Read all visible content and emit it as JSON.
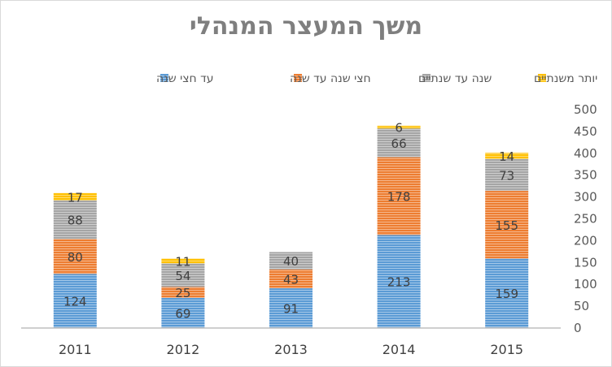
{
  "chart_data": {
    "type": "bar",
    "stacked": true,
    "title": "משך המעצר המנהלי",
    "categories": [
      "2011",
      "2012",
      "2013",
      "2014",
      "2015"
    ],
    "series": [
      {
        "name": "עד חצי שנה",
        "color": "#5b9bd5",
        "values": [
          124,
          69,
          91,
          213,
          159
        ]
      },
      {
        "name": "חצי שנה עד שנה",
        "color": "#ed7d31",
        "values": [
          80,
          25,
          43,
          178,
          155
        ]
      },
      {
        "name": "שנה עד שנתיים",
        "color": "#a5a5a5",
        "values": [
          88,
          54,
          40,
          66,
          73
        ]
      },
      {
        "name": "יותר משנתיים",
        "color": "#ffc000",
        "values": [
          17,
          11,
          0,
          6,
          14
        ]
      }
    ],
    "y_axis_position": "right",
    "y_ticks": [
      "0",
      "50",
      "100",
      "150",
      "200",
      "250",
      "300",
      "350",
      "400",
      "450",
      "500"
    ],
    "ylim": [
      0,
      500
    ],
    "legend_position": "top",
    "grid": false,
    "data_labels": true
  }
}
